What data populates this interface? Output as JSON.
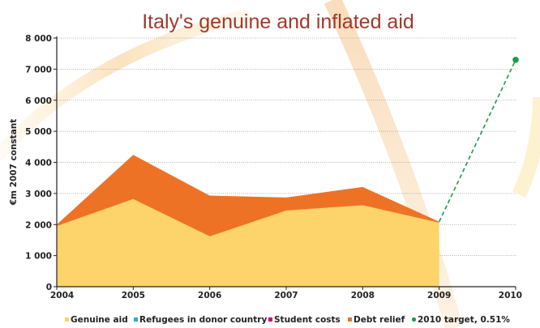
{
  "chart_data": {
    "type": "area",
    "title": "Italy's genuine and inflated aid",
    "ylabel": "€m 2007 constant",
    "xlabel": "",
    "x": [
      "2004",
      "2005",
      "2006",
      "2007",
      "2008",
      "2009",
      "2010"
    ],
    "ylim": [
      0,
      8000
    ],
    "yticks": [
      0,
      1000,
      2000,
      3000,
      4000,
      5000,
      6000,
      7000,
      8000
    ],
    "ytick_labels": [
      "0",
      "1 000",
      "2 000",
      "3 000",
      "4 000",
      "5 000",
      "6 000",
      "7 000",
      "8 000"
    ],
    "grid": true,
    "series": [
      {
        "name": "Genuine aid",
        "color": "#fdd36b",
        "values": [
          1950,
          2820,
          1620,
          2450,
          2620,
          2060,
          null
        ]
      },
      {
        "name": "Refugees in donor country",
        "color": "#29a8df",
        "values": [
          0,
          0,
          0,
          0,
          0,
          0,
          null
        ]
      },
      {
        "name": "Student costs",
        "color": "#d6007e",
        "values": [
          0,
          0,
          0,
          0,
          0,
          0,
          null
        ]
      },
      {
        "name": "Debt relief",
        "color": "#ee7226",
        "values": [
          50,
          1420,
          1310,
          420,
          590,
          30,
          null
        ]
      }
    ],
    "target": {
      "name": "2010 target, 0.51%",
      "color": "#1f9a4a",
      "from_x": "2009",
      "from_y": 2090,
      "to_x": "2010",
      "to_y": 7300
    }
  }
}
